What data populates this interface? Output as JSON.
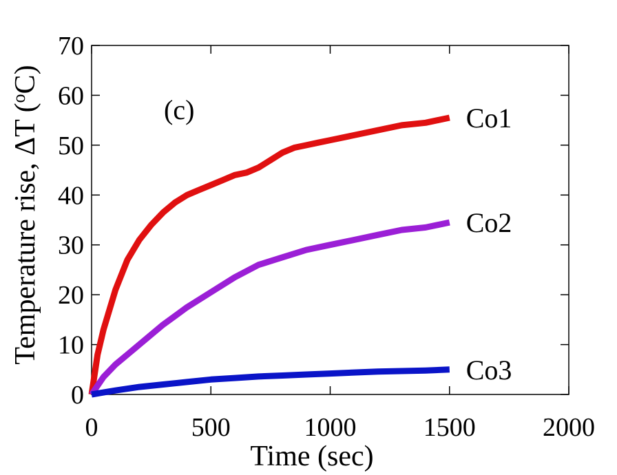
{
  "chart_data": {
    "type": "line",
    "xlabel": "Time (sec)",
    "ylabel": "Temperature rise, ΔT (",
    "ylabel_sup": "o",
    "ylabel_unit": "C)",
    "annotation": "(c)",
    "xlim": [
      0,
      2000
    ],
    "ylim": [
      0,
      70
    ],
    "xticks": [
      0,
      500,
      1000,
      1500,
      2000
    ],
    "yticks": [
      0,
      10,
      20,
      30,
      40,
      50,
      60,
      70
    ],
    "grid": false,
    "legend": "series labels at line ends",
    "series": [
      {
        "name": "Co1",
        "color": "#e01010",
        "x": [
          0,
          25,
          50,
          100,
          150,
          200,
          250,
          300,
          350,
          400,
          450,
          500,
          550,
          600,
          650,
          700,
          750,
          800,
          850,
          900,
          950,
          1000,
          1100,
          1200,
          1300,
          1400,
          1500
        ],
        "y": [
          0,
          8,
          13,
          21,
          27,
          31,
          34,
          36.5,
          38.5,
          40,
          41,
          42,
          43,
          44,
          44.5,
          45.5,
          47,
          48.5,
          49.5,
          50,
          50.5,
          51,
          52,
          53,
          54,
          54.5,
          55.5
        ]
      },
      {
        "name": "Co2",
        "color": "#9b1fd6",
        "x": [
          0,
          50,
          100,
          150,
          200,
          250,
          300,
          400,
          500,
          600,
          700,
          800,
          900,
          1000,
          1100,
          1200,
          1300,
          1400,
          1500
        ],
        "y": [
          0,
          3.5,
          6,
          8,
          10,
          12,
          14,
          17.5,
          20.5,
          23.5,
          26,
          27.5,
          29,
          30,
          31,
          32,
          33,
          33.5,
          34.5
        ]
      },
      {
        "name": "Co3",
        "color": "#0a14c8",
        "x": [
          0,
          50,
          100,
          200,
          300,
          400,
          500,
          600,
          700,
          800,
          900,
          1000,
          1100,
          1200,
          1300,
          1400,
          1500
        ],
        "y": [
          0,
          0.4,
          0.8,
          1.5,
          2,
          2.5,
          3,
          3.3,
          3.6,
          3.8,
          4.0,
          4.2,
          4.4,
          4.6,
          4.7,
          4.8,
          5
        ]
      }
    ]
  }
}
